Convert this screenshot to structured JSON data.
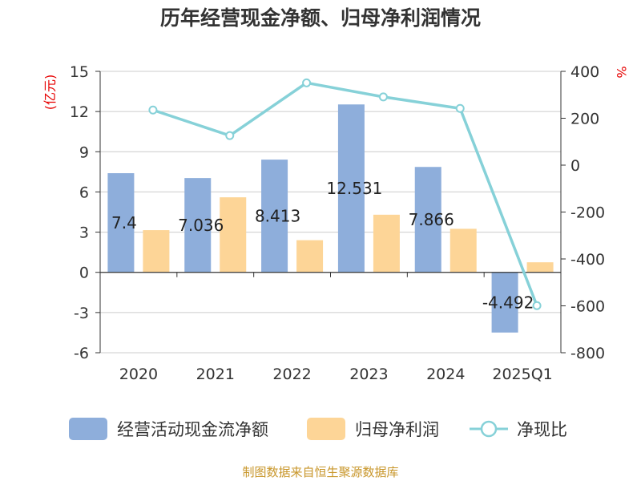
{
  "chart_data": {
    "type": "bar",
    "title": "历年经营现金净额、归母净利润情况",
    "categories": [
      "2020",
      "2021",
      "2022",
      "2023",
      "2024",
      "2025Q1"
    ],
    "y_left": {
      "unit": "(亿元)",
      "range": [
        -6,
        15
      ],
      "ticks": [
        -6,
        -3,
        0,
        3,
        6,
        9,
        12,
        15
      ]
    },
    "y_right": {
      "unit": "%",
      "range": [
        -800,
        400
      ],
      "ticks": [
        -800,
        -600,
        -400,
        -200,
        0,
        200,
        400
      ]
    },
    "series": [
      {
        "name": "经营活动现金流净额",
        "type": "bar",
        "axis": "left",
        "color": "#8eaedb",
        "values": [
          7.4,
          7.036,
          8.413,
          12.531,
          7.866,
          -4.492
        ],
        "labels": [
          "7.4",
          "7.036",
          "8.413",
          "12.531",
          "7.866",
          "-4.492"
        ]
      },
      {
        "name": "归母净利润",
        "type": "bar",
        "axis": "left",
        "color": "#fdd597",
        "values": [
          3.15,
          5.6,
          2.4,
          4.3,
          3.25,
          0.75
        ]
      },
      {
        "name": "净现比",
        "type": "line",
        "axis": "right",
        "color": "#86d1d8",
        "values": [
          235,
          126,
          351,
          291,
          242,
          -599
        ]
      }
    ],
    "legend_position": "bottom",
    "grid": true
  },
  "source": "制图数据来自恒生聚源数据库"
}
